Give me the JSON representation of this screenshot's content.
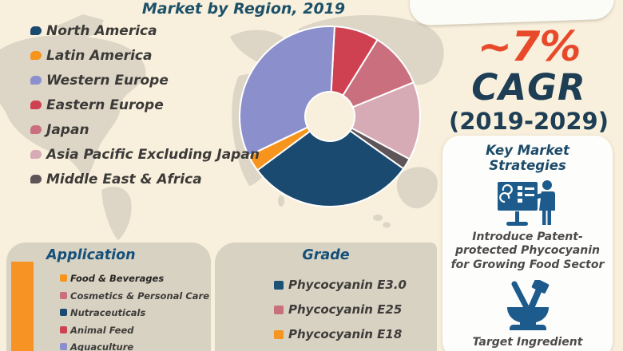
{
  "page": {
    "title": "Market by Region, 2019"
  },
  "chart_data": {
    "type": "pie",
    "subtype": "donut",
    "title": "Market by Region, 2019",
    "unit": "% market share (estimated from slice angles; no numeric labels shown in image)",
    "legend_position": "left",
    "start_angle_deg": 3,
    "draw_order_clockwise_from_top": [
      "Eastern Europe",
      "Japan",
      "Asia Pacific Excluding Japan",
      "Middle East & Africa",
      "North America",
      "Latin America",
      "Western Europe"
    ],
    "hole_fill": "#f8f0dc",
    "series": [
      {
        "name": "North America",
        "value": 30,
        "color": "#1b4a70"
      },
      {
        "name": "Latin America",
        "value": 3,
        "color": "#f6941d"
      },
      {
        "name": "Western Europe",
        "value": 33,
        "color": "#8b90cc"
      },
      {
        "name": "Eastern Europe",
        "value": 8,
        "color": "#cf4150"
      },
      {
        "name": "Japan",
        "value": 10,
        "color": "#c96f7d"
      },
      {
        "name": "Asia Pacific Excluding Japan",
        "value": 14,
        "color": "#d7abb5"
      },
      {
        "name": "Middle East & Africa",
        "value": 2,
        "color": "#5e5558"
      }
    ]
  },
  "cagr": {
    "value": "~7%",
    "label": "CAGR",
    "period": "(2019-2029)",
    "value_color": "#e8492a",
    "label_color": "#1d3e55"
  },
  "strategies": {
    "title": "Key Market Strategies",
    "icon_color": "#1d5b8c",
    "items": [
      {
        "icon": "presentation-board-icon",
        "text": "Introduce Patent-protected Phycocyanin for Growing Food Sector"
      },
      {
        "icon": "mortar-pestle-icon",
        "text": "Target Ingredient Companies"
      }
    ]
  },
  "application": {
    "title": "Application",
    "bar_color": "#f79324",
    "items": [
      {
        "label": "Food & Beverages",
        "color": "#f6941d"
      },
      {
        "label": "Cosmetics & Personal Care",
        "color": "#c9707e"
      },
      {
        "label": "Nutraceuticals",
        "color": "#1b4a70"
      },
      {
        "label": "Animal Feed",
        "color": "#cf4150"
      },
      {
        "label": "Aquaculture",
        "color": "#8b90cc"
      }
    ]
  },
  "grade": {
    "title": "Grade",
    "items": [
      {
        "label": "Phycocyanin E3.0",
        "color": "#1c5276"
      },
      {
        "label": "Phycocyanin E25",
        "color": "#c9707e"
      },
      {
        "label": "Phycocyanin E18",
        "color": "#f6951f"
      }
    ]
  },
  "colors": {
    "background_cream": "#f8f0dc",
    "map_gray": "#ddd6c6",
    "panel_gray": "#d8d2c3",
    "title_blue": "#1d5169",
    "accent_red": "#e8492a",
    "navy": "#1d3e55"
  }
}
